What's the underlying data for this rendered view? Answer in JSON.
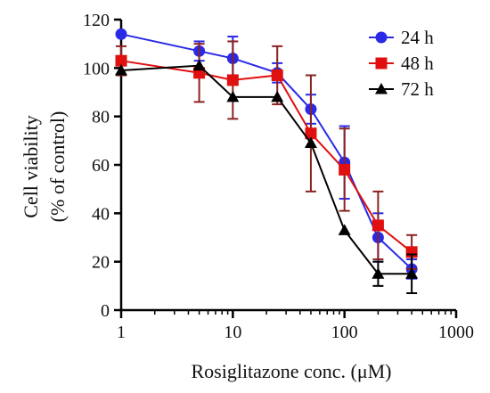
{
  "chart_data": {
    "type": "line",
    "xlabel": "Rosiglitazone conc. (μM)",
    "ylabel_line1": "Cell viability",
    "ylabel_line2": "(% of control)",
    "x_scale": "log",
    "xlim": [
      1,
      1000
    ],
    "ylim": [
      0,
      120
    ],
    "x_ticks": [
      1,
      10,
      100,
      1000
    ],
    "x_tick_labels": [
      "1",
      "10",
      "100",
      "1000"
    ],
    "y_ticks": [
      0,
      20,
      40,
      60,
      80,
      100,
      120
    ],
    "y_tick_labels": [
      "0",
      "20",
      "40",
      "60",
      "80",
      "100",
      "120"
    ],
    "legend_position": "top-right",
    "grid": false,
    "x": [
      1,
      5,
      10,
      25,
      50,
      100,
      200,
      400
    ],
    "series": [
      {
        "name": "24 h",
        "marker": "circle",
        "color": "#2a2ae6",
        "values": [
          114,
          107,
          104,
          98,
          83,
          61,
          30,
          17
        ],
        "error": [
          0,
          4,
          9,
          4,
          6,
          15,
          10,
          4
        ]
      },
      {
        "name": "48 h",
        "marker": "square",
        "color": "#e01010",
        "errorColor": "#8b2222",
        "values": [
          103,
          98,
          95,
          97,
          73,
          58,
          35,
          24
        ],
        "error": [
          6,
          12,
          16,
          12,
          24,
          17,
          14,
          7
        ]
      },
      {
        "name": "72 h",
        "marker": "triangle",
        "color": "#000000",
        "values": [
          99,
          101,
          88,
          88,
          69,
          33,
          15,
          15
        ],
        "error": [
          0,
          0,
          0,
          0,
          0,
          0,
          5,
          8
        ]
      }
    ]
  }
}
